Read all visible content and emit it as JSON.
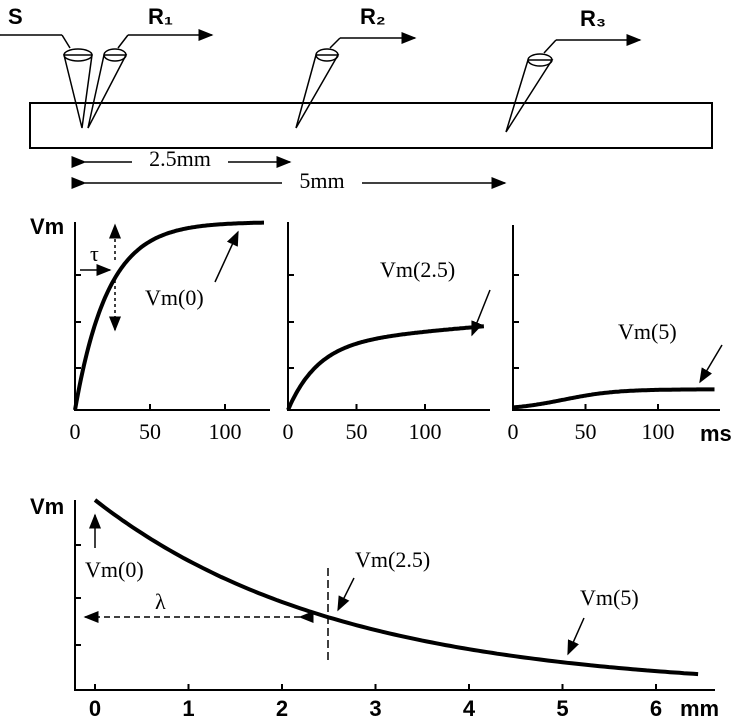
{
  "electrodes": {
    "stimulus": "S",
    "recording": [
      "R₁",
      "R₂",
      "R₃"
    ]
  },
  "distances": [
    "2.5mm",
    "5mm"
  ],
  "time_panels": [
    {
      "y_label": "Vm",
      "curve_label": "Vm(0)",
      "tau_label": "τ",
      "x_ticks": [
        0,
        50,
        100
      ]
    },
    {
      "curve_label": "Vm(2.5)",
      "x_ticks": [
        0,
        50,
        100
      ]
    },
    {
      "curve_label": "Vm(5)",
      "x_ticks": [
        0,
        50,
        100
      ],
      "x_unit": "ms"
    }
  ],
  "space_panel": {
    "y_label": "Vm",
    "labels": [
      "Vm(0)",
      "Vm(2.5)",
      "Vm(5)"
    ],
    "lambda_label": "λ",
    "x_ticks": [
      0,
      1,
      2,
      3,
      4,
      5,
      6
    ],
    "x_unit": "mm"
  }
}
